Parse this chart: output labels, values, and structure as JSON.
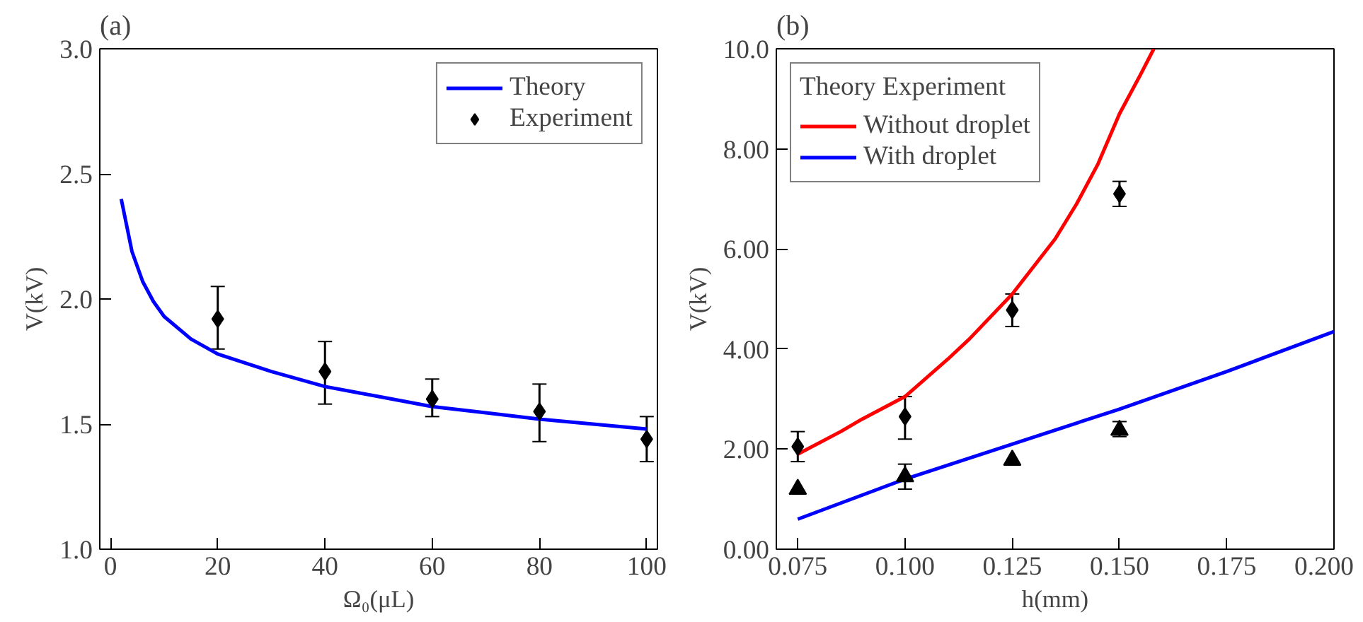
{
  "chart_data": [
    {
      "type": "line",
      "title": "(a)",
      "xlabel": "Ω₀(μL)",
      "ylabel": "V(kV)",
      "xlim": [
        -2,
        102
      ],
      "ylim": [
        1.0,
        3.0
      ],
      "xticks": [
        0,
        20,
        40,
        60,
        80,
        100
      ],
      "yticks": [
        {
          "value": 1.0,
          "label": "1.0"
        },
        {
          "value": 1.5,
          "label": "1.5"
        },
        {
          "value": 2.0,
          "label": "2.0"
        },
        {
          "value": 2.5,
          "label": "2.5"
        },
        {
          "value": 3.0,
          "label": "3.0"
        }
      ],
      "grid": false,
      "legend": "top right",
      "series": [
        {
          "name": "Theory",
          "color": "#0000ff",
          "marker": "none",
          "x": [
            2,
            4,
            6,
            8,
            10,
            15,
            20,
            30,
            40,
            50,
            60,
            70,
            80,
            90,
            100
          ],
          "values": [
            2.4,
            2.19,
            2.07,
            1.99,
            1.93,
            1.84,
            1.78,
            1.71,
            1.65,
            1.61,
            1.57,
            1.545,
            1.52,
            1.5,
            1.48
          ]
        },
        {
          "name": "Experiment",
          "type": "scatter",
          "color": "#000000",
          "marker": "diamond",
          "x": [
            20,
            40,
            60,
            80,
            100
          ],
          "values": [
            1.92,
            1.71,
            1.6,
            1.55,
            1.44
          ],
          "errors": [
            [
              1.8,
              2.05
            ],
            [
              1.58,
              1.83
            ],
            [
              1.53,
              1.68
            ],
            [
              1.43,
              1.66
            ],
            [
              1.35,
              1.53
            ]
          ]
        }
      ]
    },
    {
      "type": "line",
      "title": "(b)",
      "xlabel": "h(mm)",
      "ylabel": "V(kV)",
      "legend_title": "Theory Experiment",
      "xlim": [
        0.07,
        0.2
      ],
      "ylim": [
        0,
        10
      ],
      "xticks": [
        {
          "value": 0.075,
          "label": "0.075"
        },
        {
          "value": 0.1,
          "label": "0.100"
        },
        {
          "value": 0.125,
          "label": "0.125"
        },
        {
          "value": 0.15,
          "label": "0.150"
        },
        {
          "value": 0.175,
          "label": "0.175"
        },
        {
          "value": 0.2,
          "label": "0.200"
        }
      ],
      "yticks": [
        {
          "value": 0,
          "label": "0.00"
        },
        {
          "value": 2,
          "label": "2.00"
        },
        {
          "value": 4,
          "label": "4.00"
        },
        {
          "value": 6,
          "label": "6.00"
        },
        {
          "value": 8,
          "label": "8.00"
        },
        {
          "value": 10,
          "label": "10.0"
        }
      ],
      "grid": false,
      "legend": "top left",
      "series": [
        {
          "name": "Without droplet",
          "color": "#ff0000",
          "marker": "none",
          "x": [
            0.075,
            0.085,
            0.09,
            0.1,
            0.11,
            0.115,
            0.125,
            0.135,
            0.14,
            0.145,
            0.15,
            0.155,
            0.158
          ],
          "values": [
            1.9,
            2.35,
            2.6,
            3.05,
            3.8,
            4.2,
            5.1,
            6.2,
            6.9,
            7.7,
            8.7,
            9.5,
            10.0
          ]
        },
        {
          "type": "scatter",
          "color": "#000000",
          "marker": "diamond",
          "x": [
            0.075,
            0.1,
            0.125,
            0.15
          ],
          "values": [
            2.05,
            2.65,
            4.78,
            7.1
          ],
          "errors": [
            [
              1.75,
              2.35
            ],
            [
              2.2,
              3.05
            ],
            [
              4.45,
              5.1
            ],
            [
              6.85,
              7.35
            ]
          ]
        },
        {
          "name": "With droplet",
          "color": "#0000ff",
          "marker": "none",
          "x": [
            0.075,
            0.1,
            0.125,
            0.15,
            0.175,
            0.2
          ],
          "values": [
            0.6,
            1.4,
            2.1,
            2.8,
            3.55,
            4.35
          ]
        },
        {
          "type": "scatter",
          "color": "#000000",
          "marker": "triangle",
          "x": [
            0.075,
            0.1,
            0.125,
            0.15
          ],
          "values": [
            1.2,
            1.45,
            1.78,
            2.38
          ],
          "errors": [
            null,
            [
              1.2,
              1.7
            ],
            null,
            [
              2.25,
              2.55
            ]
          ]
        }
      ]
    }
  ]
}
